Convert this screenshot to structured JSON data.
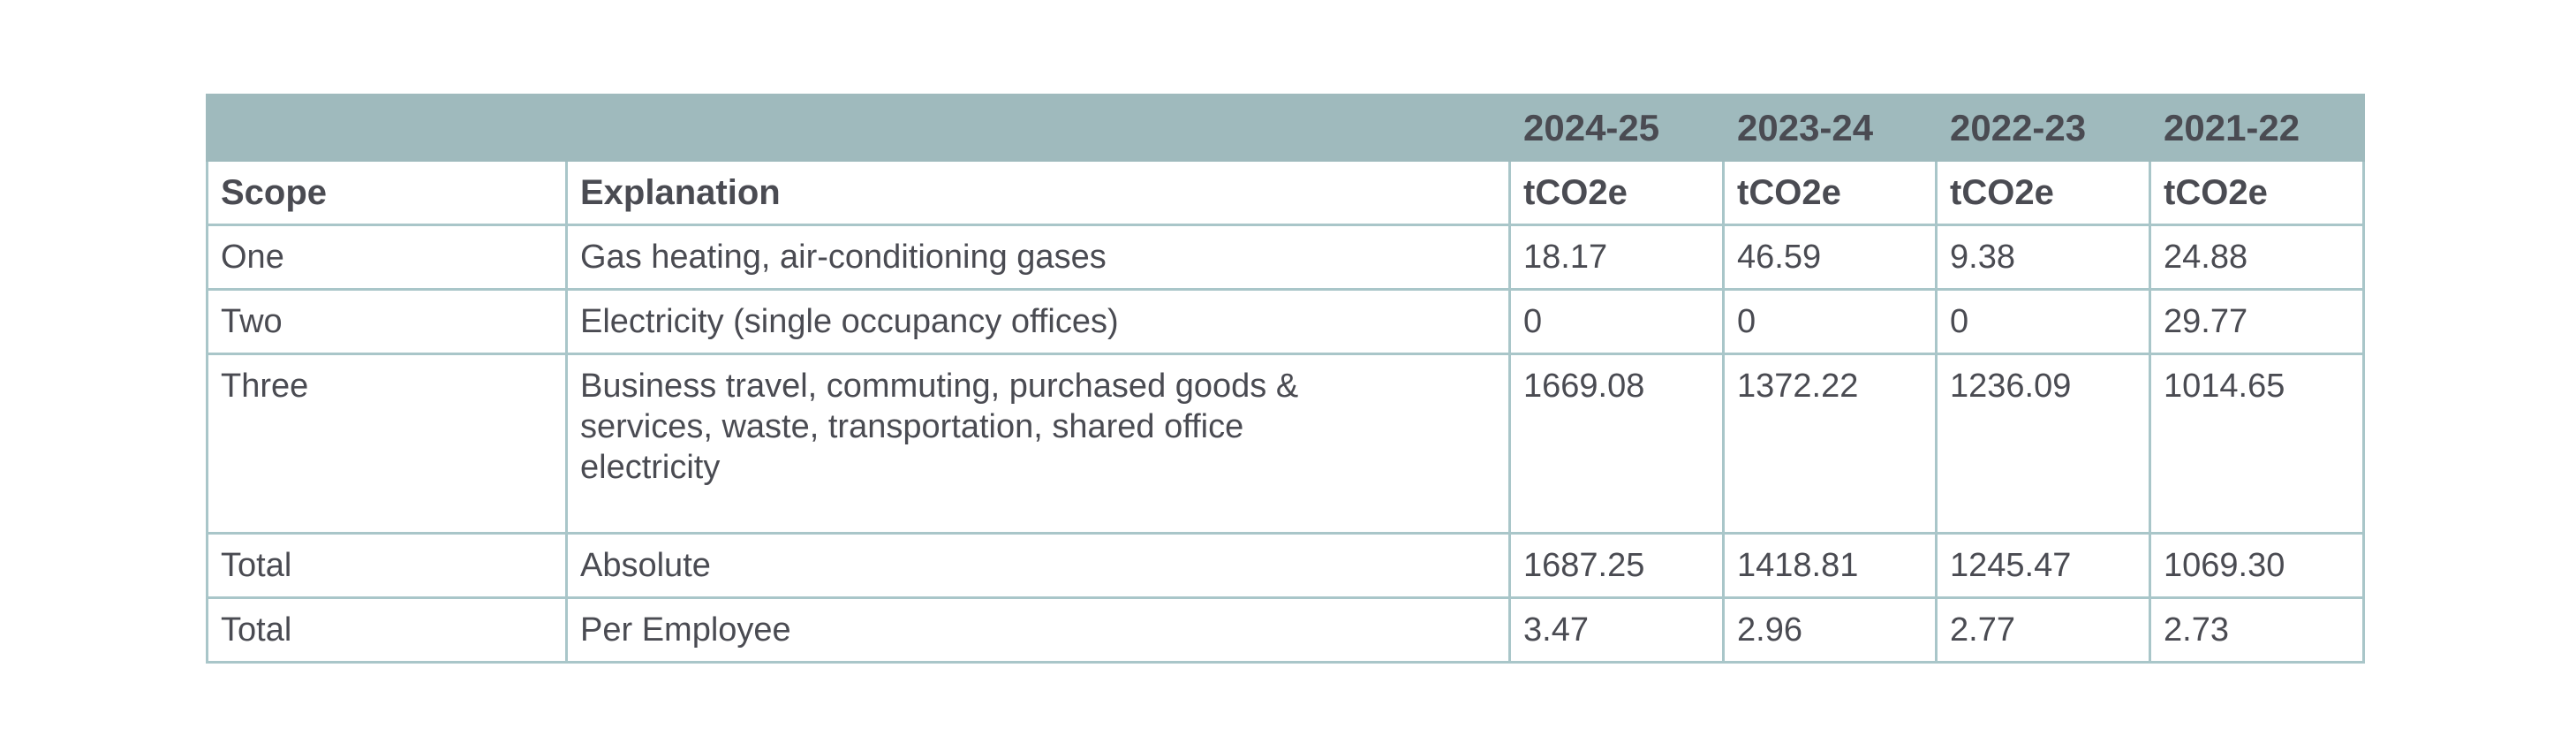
{
  "table": {
    "years": [
      "2024-25",
      "2023-24",
      "2022-23",
      "2021-22"
    ],
    "headers": {
      "scope": "Scope",
      "explanation": "Explanation",
      "units": [
        "tCO2e",
        "tCO2e",
        "tCO2e",
        "tCO2e"
      ]
    },
    "rows": [
      {
        "scope": "One",
        "explanation": "Gas heating, air-conditioning gases",
        "values": [
          "18.17",
          "46.59",
          "9.38",
          "24.88"
        ]
      },
      {
        "scope": "Two",
        "explanation": "Electricity (single occupancy offices)",
        "values": [
          "0",
          "0",
          "0",
          "29.77"
        ]
      },
      {
        "scope": "Three",
        "explanation": "Business travel, commuting, purchased goods & services, waste, transportation, shared office electricity",
        "values": [
          "1669.08",
          "1372.22",
          "1236.09",
          "1014.65"
        ]
      },
      {
        "scope": "Total",
        "explanation": "Absolute",
        "values": [
          "1687.25",
          "1418.81",
          "1245.47",
          "1069.30"
        ]
      },
      {
        "scope": "Total",
        "explanation": "Per Employee",
        "values": [
          "3.47",
          "2.96",
          "2.77",
          "2.73"
        ]
      }
    ],
    "colors": {
      "header_bg": "#9fbabd",
      "border": "#a9c6c9",
      "text": "#4a4b52"
    }
  }
}
